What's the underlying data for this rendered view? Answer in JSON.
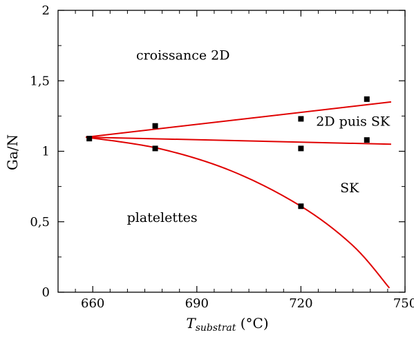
{
  "chart_data": {
    "type": "scatter",
    "xlabel_main": "T",
    "xlabel_sub": "substrat",
    "xlabel_unit": " (°C)",
    "ylabel": "Ga/N",
    "xlim": [
      650,
      750
    ],
    "ylim": [
      0,
      2
    ],
    "x_ticks": [
      660,
      690,
      720,
      750
    ],
    "x_tick_labels": [
      "660",
      "690",
      "720",
      "750"
    ],
    "y_ticks": [
      0,
      0.5,
      1,
      1.5,
      2
    ],
    "y_tick_labels": [
      "0",
      "0,5",
      "1",
      "1,5",
      "2"
    ],
    "grid": false,
    "points": [
      {
        "x": 659,
        "y": 1.09
      },
      {
        "x": 678,
        "y": 1.18
      },
      {
        "x": 678,
        "y": 1.02
      },
      {
        "x": 720,
        "y": 1.23
      },
      {
        "x": 720,
        "y": 1.02
      },
      {
        "x": 720,
        "y": 0.61
      },
      {
        "x": 739,
        "y": 1.37
      },
      {
        "x": 739,
        "y": 1.08
      }
    ],
    "boundary_color": "#e00000",
    "boundaries": [
      {
        "kind": "line",
        "x": [
          658,
          746
        ],
        "y": [
          1.1,
          1.35
        ]
      },
      {
        "kind": "line",
        "x": [
          658,
          746
        ],
        "y": [
          1.1,
          1.05
        ]
      },
      {
        "kind": "curve",
        "x": [
          658,
          679,
          700,
          720,
          735,
          745.5
        ],
        "y": [
          1.1,
          1.02,
          0.86,
          0.61,
          0.33,
          0.03
        ]
      }
    ],
    "region_labels": [
      {
        "text": "croissance 2D",
        "x": 686,
        "y": 1.65
      },
      {
        "text": "2D puis SK",
        "x": 735,
        "y": 1.18
      },
      {
        "text": "SK",
        "x": 734,
        "y": 0.71
      },
      {
        "text": "platelettes",
        "x": 680,
        "y": 0.5
      }
    ]
  }
}
